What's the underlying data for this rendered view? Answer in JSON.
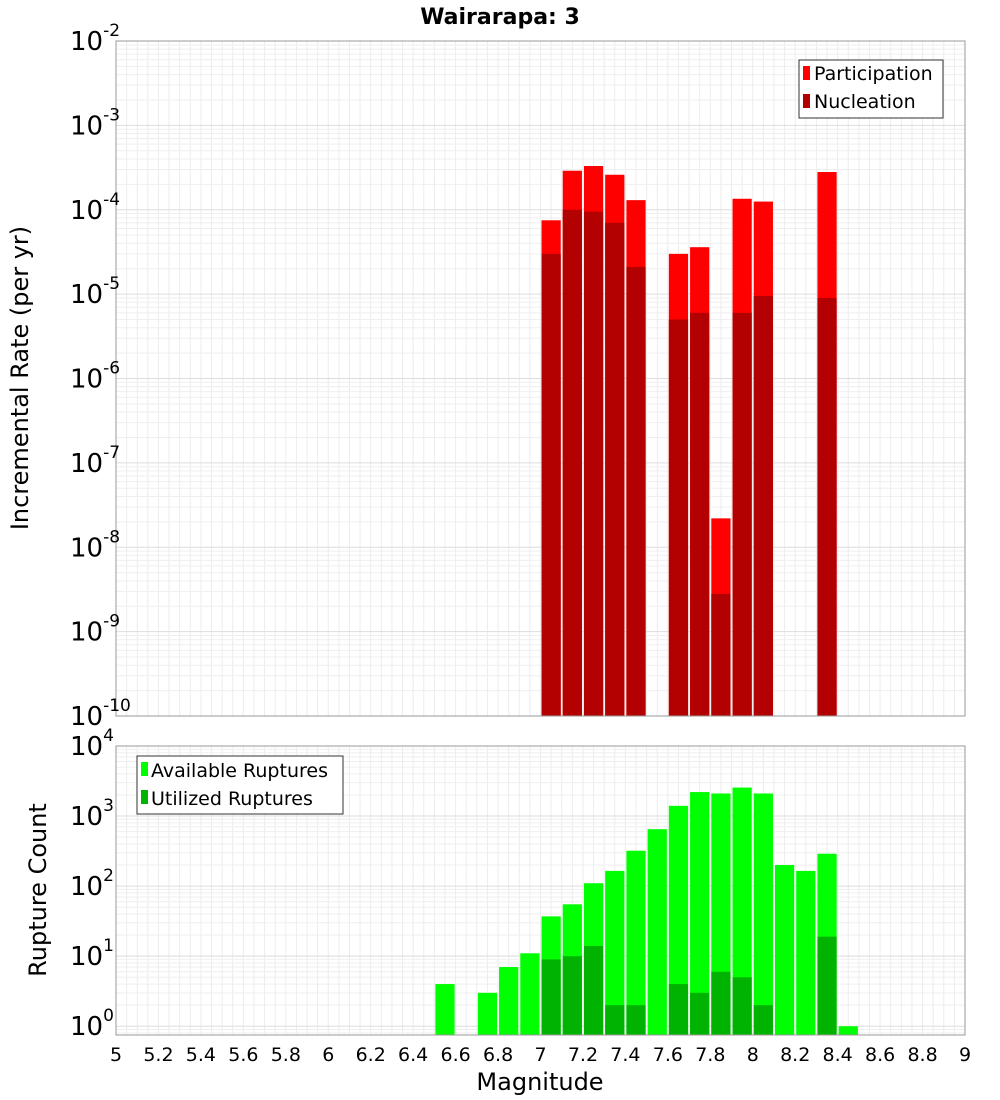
{
  "title": "Wairarapa: 3",
  "xlabel": "Magnitude",
  "x_ticks": [
    "5",
    "5.2",
    "5.4",
    "5.6",
    "5.8",
    "6",
    "6.2",
    "6.4",
    "6.6",
    "6.8",
    "7",
    "7.2",
    "7.4",
    "7.6",
    "7.8",
    "8",
    "8.2",
    "8.4",
    "8.6",
    "8.8",
    "9"
  ],
  "chart_data": [
    {
      "type": "bar",
      "scale": "log",
      "title": "Wairarapa: 3",
      "xlabel": "Magnitude",
      "ylabel": "Incremental Rate (per yr)",
      "xlim": [
        5,
        9
      ],
      "ylim": [
        1e-10,
        0.01
      ],
      "y_tick_exponents": [
        -2,
        -3,
        -4,
        -5,
        -6,
        -7,
        -8,
        -9,
        -10
      ],
      "grid": true,
      "legend_position": "top-right",
      "bar_width": 0.1,
      "x": [
        7.05,
        7.15,
        7.25,
        7.35,
        7.45,
        7.65,
        7.75,
        7.85,
        7.95,
        8.05,
        8.35
      ],
      "series": [
        {
          "name": "Participation",
          "color": "#ff0000",
          "values": [
            7.5e-05,
            0.00029,
            0.00033,
            0.00026,
            0.00013,
            3e-05,
            3.6e-05,
            2.2e-08,
            0.000135,
            0.000125,
            0.00028
          ]
        },
        {
          "name": "Nucleation",
          "color": "#b30000",
          "values": [
            3e-05,
            0.0001,
            9.5e-05,
            7e-05,
            2.1e-05,
            5e-06,
            6e-06,
            2.8e-09,
            6e-06,
            9.5e-06,
            9e-06
          ]
        }
      ]
    },
    {
      "type": "bar",
      "scale": "log",
      "xlabel": "Magnitude",
      "ylabel": "Rupture Count",
      "xlim": [
        5,
        9
      ],
      "ylim": [
        0.75,
        10000
      ],
      "y_tick_exponents": [
        4,
        3,
        2,
        1,
        0
      ],
      "grid": true,
      "legend_position": "top-left",
      "bar_width": 0.1,
      "x": [
        6.55,
        6.75,
        6.85,
        6.95,
        7.05,
        7.15,
        7.25,
        7.35,
        7.45,
        7.55,
        7.65,
        7.75,
        7.85,
        7.95,
        8.05,
        8.15,
        8.25,
        8.35,
        8.45
      ],
      "series": [
        {
          "name": "Available Ruptures",
          "color": "#00ff00",
          "values": [
            4,
            3,
            7,
            11,
            37,
            55,
            110,
            165,
            320,
            650,
            1400,
            2200,
            2100,
            2550,
            2100,
            200,
            165,
            290,
            1
          ]
        },
        {
          "name": "Utilized Ruptures",
          "color": "#00b300",
          "values": [
            0,
            0,
            0,
            0,
            9,
            10,
            14,
            2,
            2,
            0,
            4,
            3,
            6,
            5,
            2,
            0,
            0,
            19,
            0
          ]
        }
      ]
    }
  ]
}
